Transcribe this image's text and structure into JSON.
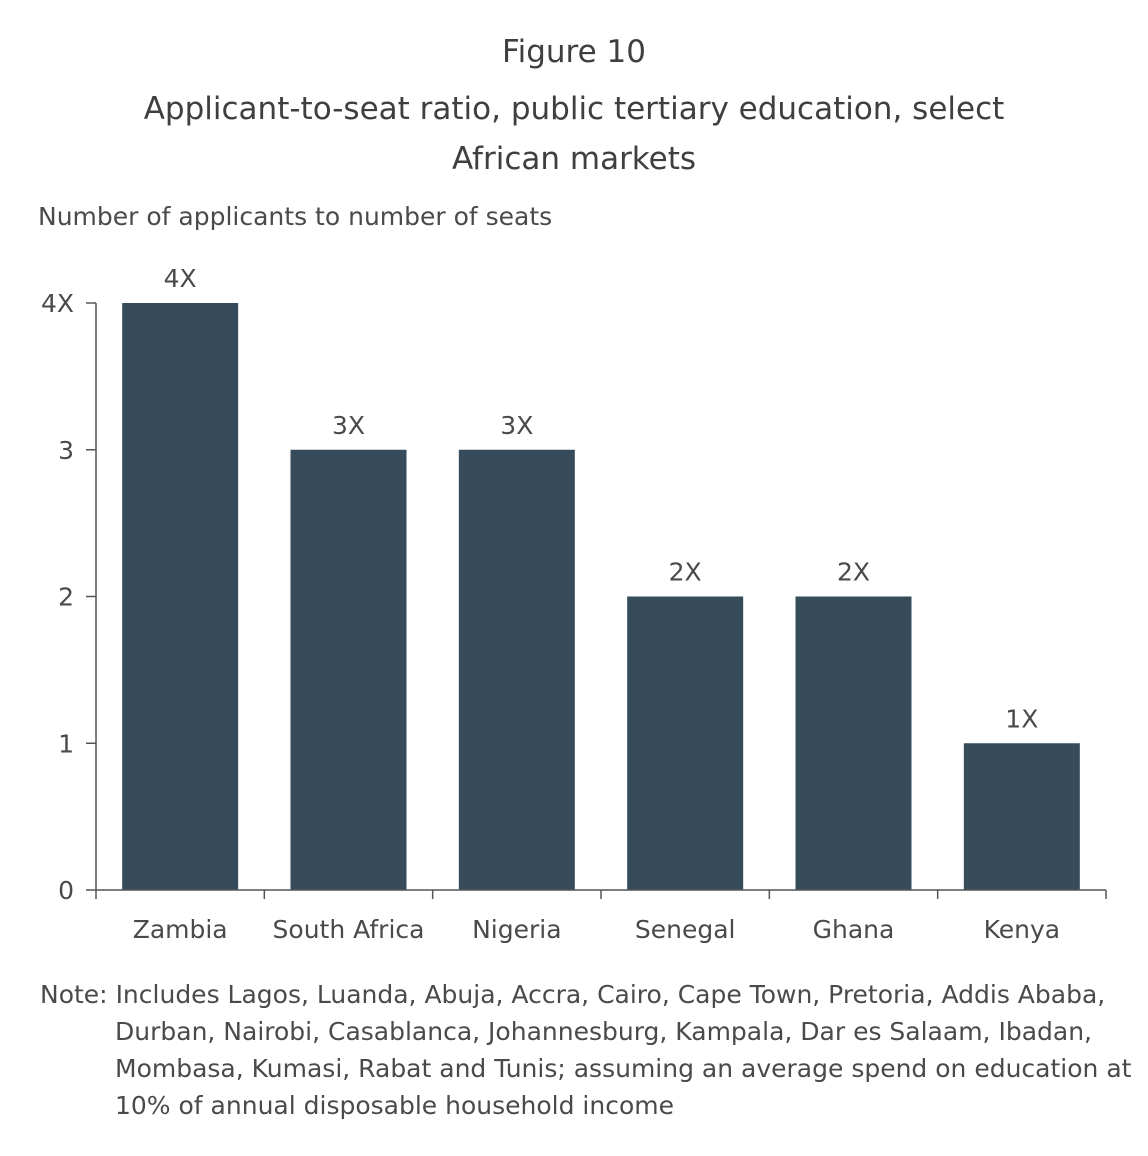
{
  "figure_number": "Figure 10",
  "note": {
    "lead": "Note:",
    "text": "Includes Lagos, Luanda, Abuja, Accra, Cairo, Cape Town, Pretoria, Addis Ababa, Durban, Nairobi, Casablanca, Johannesburg, Kampala, Dar es Salaam, Ibadan, Mombasa, Kumasi, Rabat and Tunis; assuming an average spend on education at 10% of annual disposable household income"
  },
  "colors": {
    "bar": "#364c5b",
    "axis": "#555555",
    "text": "#4a4a4a"
  },
  "chart_data": {
    "type": "bar",
    "title": "Applicant-to-seat ratio, public tertiary education, select African markets",
    "ylabel": "Number of applicants to number of seats",
    "xlabel": "",
    "categories": [
      "Zambia",
      "South Africa",
      "Nigeria",
      "Senegal",
      "Ghana",
      "Kenya"
    ],
    "values": [
      4,
      3,
      3,
      2,
      2,
      1
    ],
    "data_labels": [
      "4X",
      "3X",
      "3X",
      "2X",
      "2X",
      "1X"
    ],
    "yticks": [
      0,
      1,
      2,
      3,
      4
    ],
    "ytick_labels": [
      "0",
      "1",
      "2",
      "3",
      "4X"
    ],
    "ylim": [
      0,
      4
    ],
    "grid": false,
    "legend": "none"
  }
}
